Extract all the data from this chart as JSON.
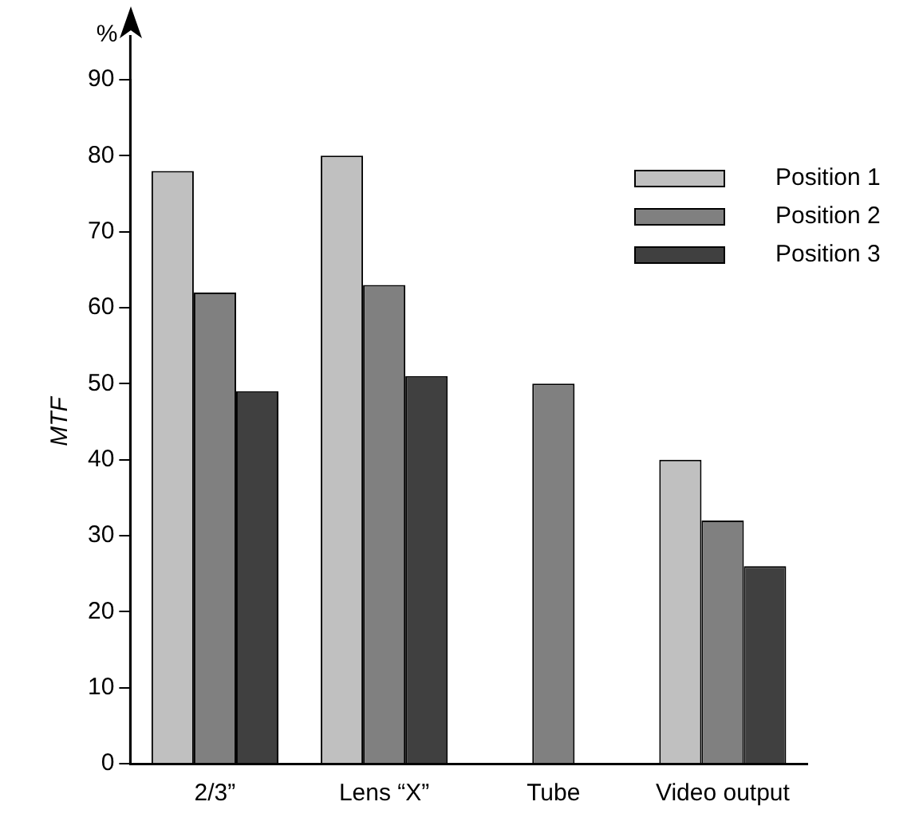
{
  "chart_data": {
    "type": "bar",
    "ylabel": "MTF",
    "annotations": [
      "%"
    ],
    "categories": [
      "2/3”",
      "Lens “X”",
      "Tube",
      "Video output"
    ],
    "series": [
      {
        "name": "Position 1",
        "color": "#c0c0c0",
        "values": [
          78,
          80,
          null,
          40
        ]
      },
      {
        "name": "Position 2",
        "color": "#808080",
        "values": [
          62,
          63,
          50,
          32
        ]
      },
      {
        "name": "Position 3",
        "color": "#404040",
        "values": [
          49,
          51,
          null,
          26
        ]
      }
    ],
    "ylim": [
      0,
      90
    ],
    "yticks": [
      0,
      10,
      20,
      30,
      40,
      50,
      60,
      70,
      80,
      90
    ],
    "grid": false,
    "legend": "top right"
  }
}
